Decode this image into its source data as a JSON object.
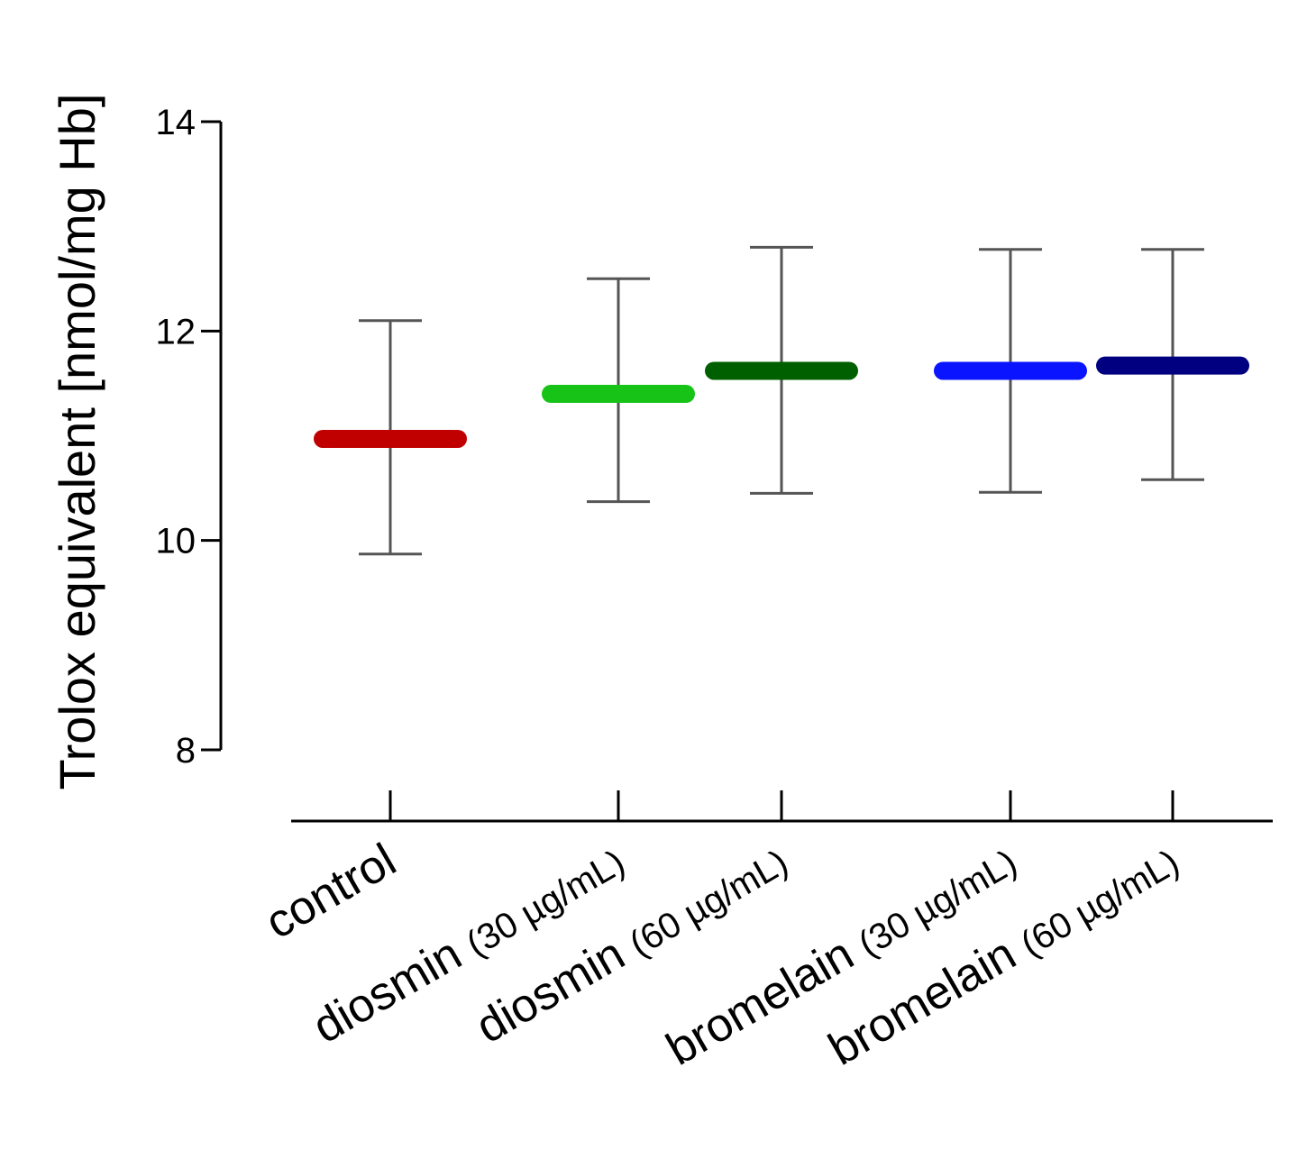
{
  "chart_data": {
    "type": "scatter",
    "title": "",
    "xlabel": "",
    "ylabel": "Trolox equivalent [nmol/mg Hb]",
    "ylim": [
      8,
      14
    ],
    "yticks": [
      "8",
      "10",
      "12",
      "14"
    ],
    "grid": false,
    "categories": [
      {
        "name": "control",
        "dose": ""
      },
      {
        "name": "diosmin",
        "dose": "(30 µg/mL)"
      },
      {
        "name": "diosmin",
        "dose": "(60 µg/mL)"
      },
      {
        "name": "bromelain",
        "dose": "(30 µg/mL)"
      },
      {
        "name": "bromelain",
        "dose": "(60 µg/mL)"
      }
    ],
    "means": [
      10.97,
      11.4,
      11.62,
      11.62,
      11.67
    ],
    "error_low": [
      9.87,
      10.37,
      10.45,
      10.46,
      10.58
    ],
    "error_high": [
      12.1,
      12.5,
      12.8,
      12.78,
      12.78
    ],
    "colors": [
      "#c00000",
      "#16c316",
      "#006000",
      "#0a14ff",
      "#000080"
    ],
    "error_bar_color": "#555555",
    "axis_color": "#000000"
  }
}
